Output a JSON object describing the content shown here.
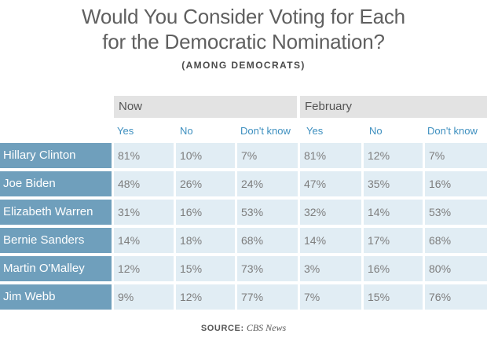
{
  "chart_data": {
    "type": "table",
    "title_line1": "Would You Consider Voting for Each",
    "title_line2": "for the Democratic Nomination?",
    "subtitle": "(AMONG DEMOCRATS)",
    "groups": [
      "Now",
      "February"
    ],
    "subheaders": [
      "Yes",
      "No",
      "Don't know",
      "Yes",
      "No",
      "Don't know"
    ],
    "rows": [
      {
        "name": "Hillary Clinton",
        "values": [
          "81%",
          "10%",
          "7%",
          "81%",
          "12%",
          "7%"
        ]
      },
      {
        "name": "Joe Biden",
        "values": [
          "48%",
          "26%",
          "24%",
          "47%",
          "35%",
          "16%"
        ]
      },
      {
        "name": "Elizabeth Warren",
        "values": [
          "31%",
          "16%",
          "53%",
          "32%",
          "14%",
          "53%"
        ]
      },
      {
        "name": "Bernie Sanders",
        "values": [
          "14%",
          "18%",
          "68%",
          "14%",
          "17%",
          "68%"
        ]
      },
      {
        "name": "Martin O'Malley",
        "values": [
          "12%",
          "15%",
          "73%",
          "3%",
          "16%",
          "80%"
        ]
      },
      {
        "name": "Jim Webb",
        "values": [
          "9%",
          "12%",
          "77%",
          "7%",
          "15%",
          "76%"
        ]
      }
    ],
    "source_label": "SOURCE:",
    "source_name": "CBS News"
  }
}
